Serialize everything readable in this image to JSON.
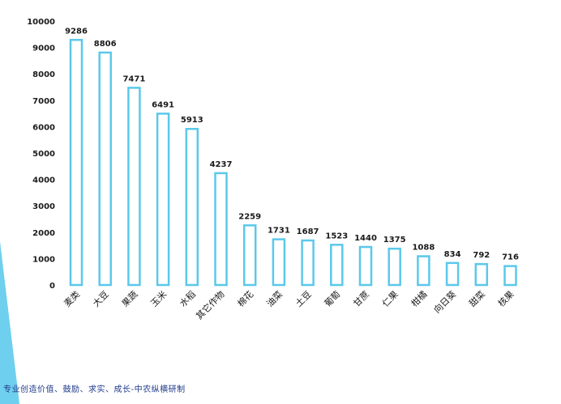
{
  "colors": {
    "bar_stroke": "#5bc8ea",
    "accent": "#3fbfe8",
    "text": "#1a1a1a",
    "footer": "#1e3a8a"
  },
  "footer": {
    "text": "专业创造价值、鼓励、求实、成长-中农纵横研制"
  },
  "chart_data": {
    "type": "bar",
    "title": "",
    "xlabel": "",
    "ylabel": "",
    "ylim": [
      0,
      10000
    ],
    "yticks": [
      0,
      1000,
      2000,
      3000,
      4000,
      5000,
      6000,
      7000,
      8000,
      9000,
      10000
    ],
    "grid": false,
    "legend": "none",
    "categories": [
      "麦类",
      "大豆",
      "果蔬",
      "玉米",
      "水稻",
      "其它作物",
      "棉花",
      "油菜",
      "土豆",
      "葡萄",
      "甘蔗",
      "仁果",
      "柑橘",
      "向日葵",
      "甜菜",
      "核果"
    ],
    "values": [
      9286,
      8806,
      7471,
      6491,
      5913,
      4237,
      2259,
      1731,
      1687,
      1523,
      1440,
      1375,
      1088,
      834,
      792,
      716
    ]
  }
}
